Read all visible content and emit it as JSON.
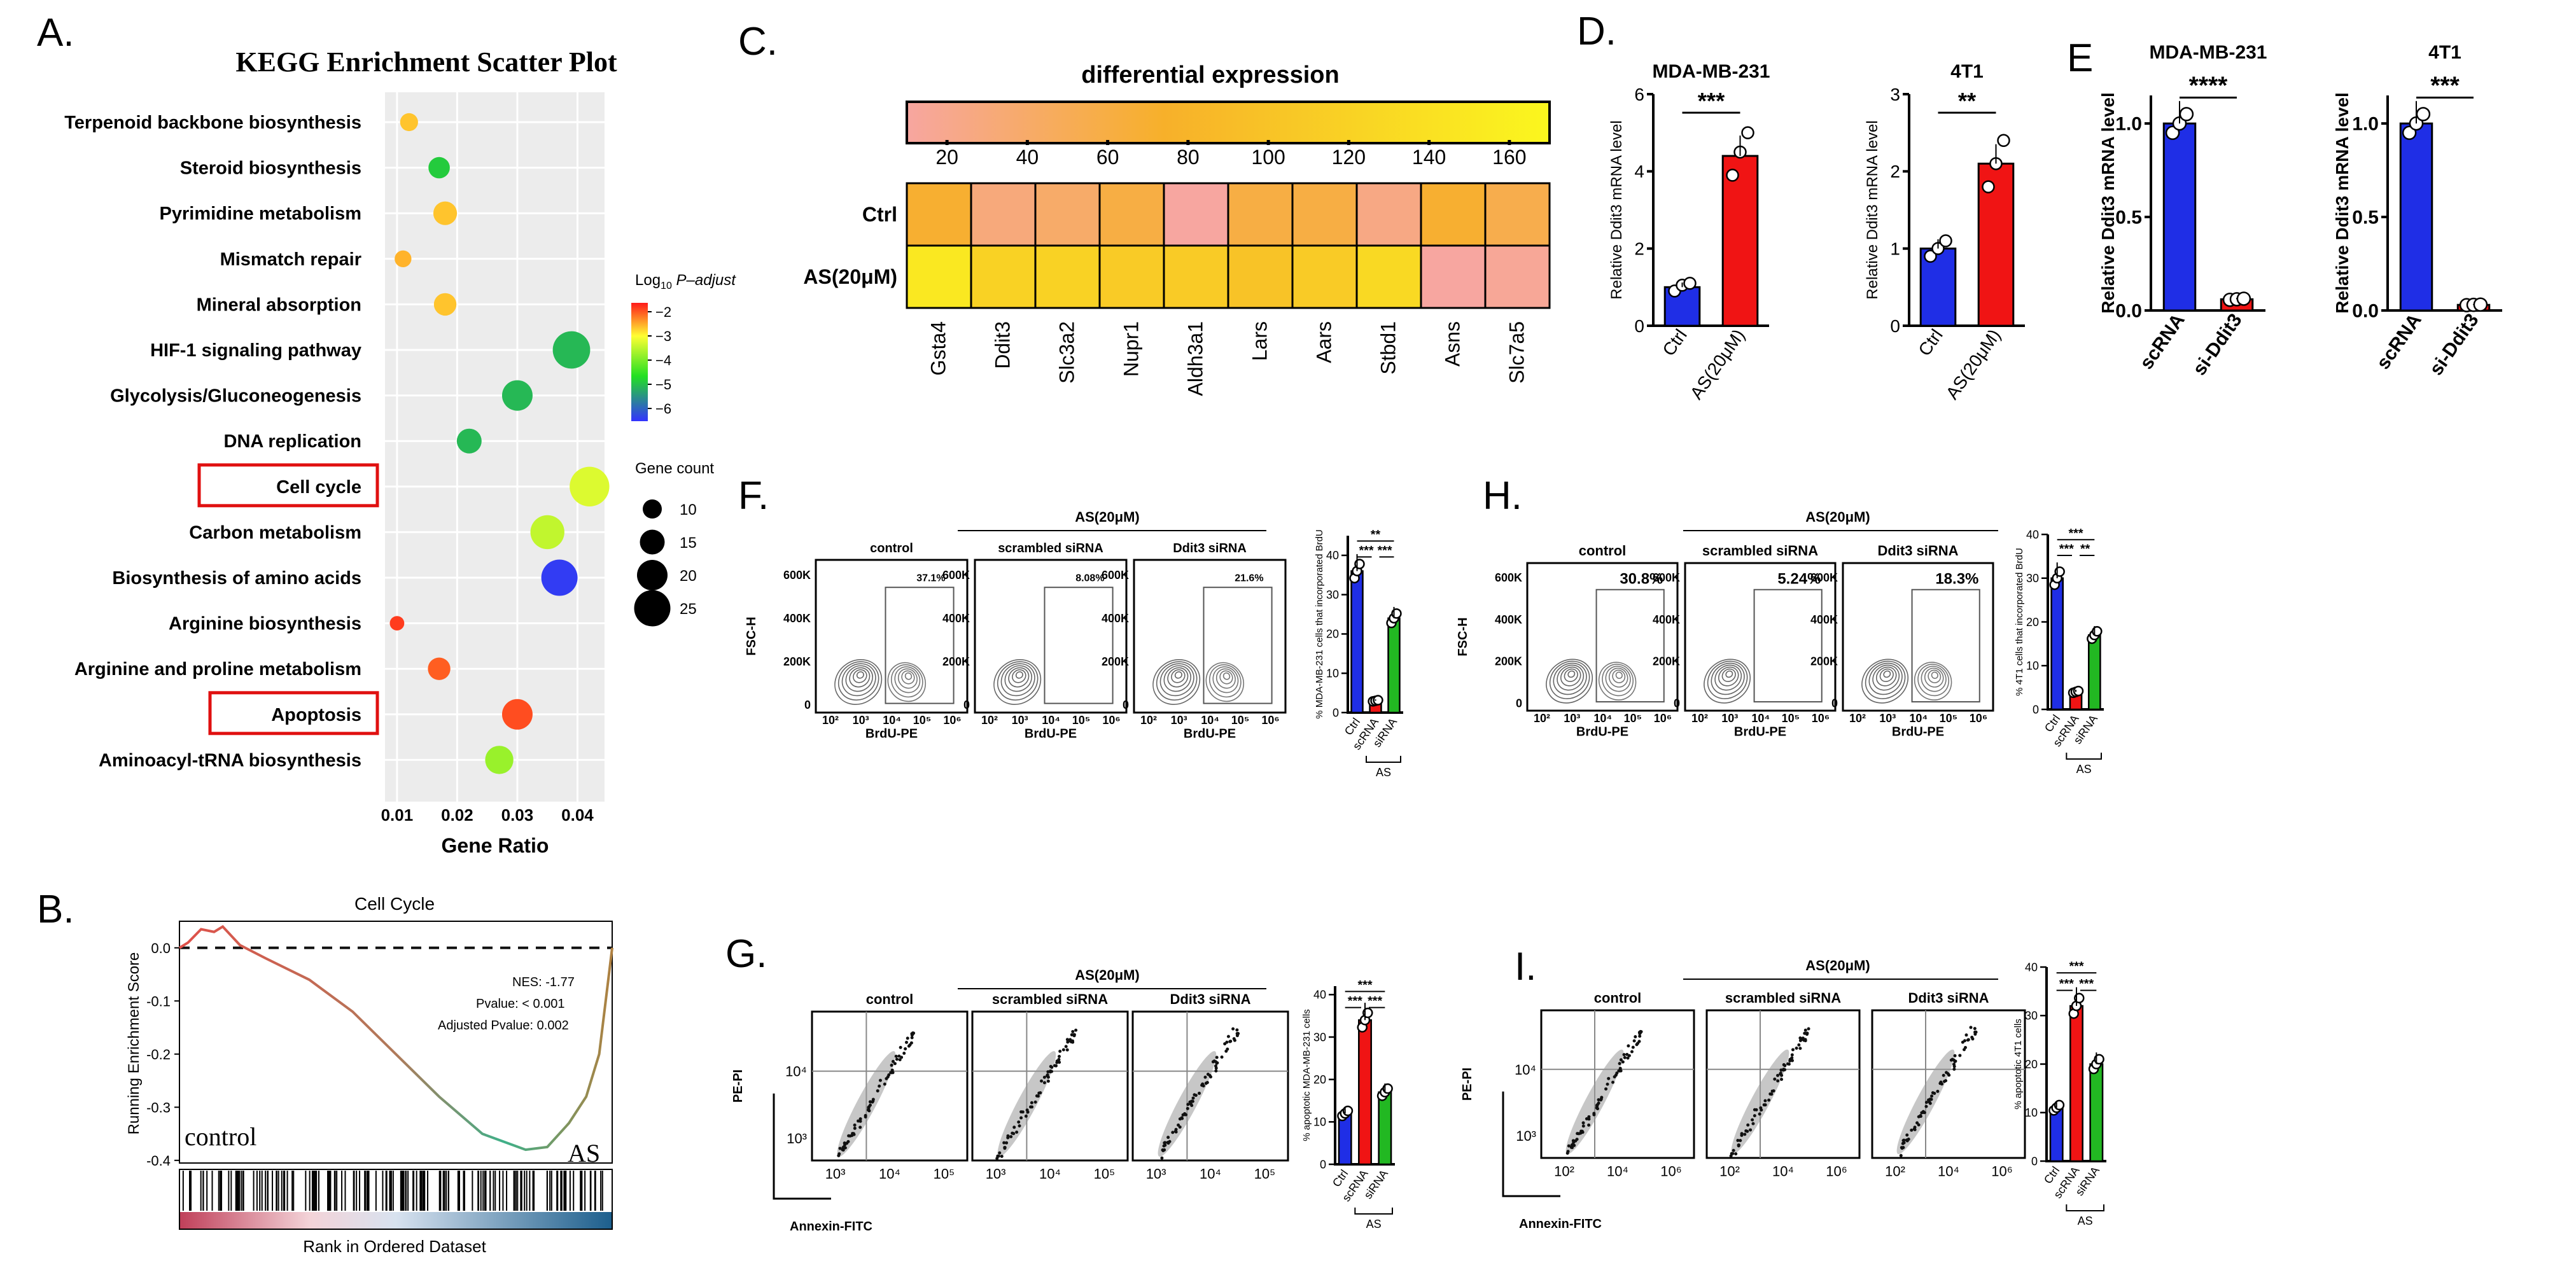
{
  "letters": {
    "A": "A.",
    "B": "B.",
    "C": "C.",
    "D": "D.",
    "E": "E",
    "F": "F.",
    "G": "G.",
    "H": "H.",
    "I": "I."
  },
  "panelA": {
    "title": "KEGG Enrichment Scatter Plot",
    "xlabel": "Gene Ratio",
    "xticks": [
      "0.01",
      "0.02",
      "0.03",
      "0.04"
    ],
    "pathways": [
      {
        "name": "Terpenoid backbone biosynthesis",
        "ratio": 0.012,
        "p": -2.6,
        "count": 9,
        "boxed": false
      },
      {
        "name": "Steroid biosynthesis",
        "ratio": 0.017,
        "p": -4.8,
        "count": 12,
        "boxed": false
      },
      {
        "name": "Pyrimidine metabolism",
        "ratio": 0.018,
        "p": -2.6,
        "count": 14,
        "boxed": false
      },
      {
        "name": "Mismatch repair",
        "ratio": 0.011,
        "p": -2.5,
        "count": 8,
        "boxed": false
      },
      {
        "name": "Mineral absorption",
        "ratio": 0.018,
        "p": -2.6,
        "count": 13,
        "boxed": false
      },
      {
        "name": "HIF-1 signaling pathway",
        "ratio": 0.039,
        "p": -5.0,
        "count": 26,
        "boxed": false
      },
      {
        "name": "Glycolysis/Gluconeogenesis",
        "ratio": 0.03,
        "p": -5.0,
        "count": 20,
        "boxed": false
      },
      {
        "name": "DNA replication",
        "ratio": 0.022,
        "p": -5.0,
        "count": 15,
        "boxed": false
      },
      {
        "name": "Cell cycle",
        "ratio": 0.042,
        "p": -3.2,
        "count": 28,
        "boxed": true
      },
      {
        "name": "Carbon metabolism",
        "ratio": 0.035,
        "p": -3.4,
        "count": 23,
        "boxed": false
      },
      {
        "name": "Biosynthesis of amino acids",
        "ratio": 0.037,
        "p": -6.3,
        "count": 25,
        "boxed": false
      },
      {
        "name": "Arginine biosynthesis",
        "ratio": 0.01,
        "p": -1.8,
        "count": 6,
        "boxed": false
      },
      {
        "name": "Arginine and proline metabolism",
        "ratio": 0.017,
        "p": -2.0,
        "count": 13,
        "boxed": false
      },
      {
        "name": "Apoptosis",
        "ratio": 0.03,
        "p": -1.9,
        "count": 20,
        "boxed": true
      },
      {
        "name": "Aminoacyl-tRNA biosynthesis",
        "ratio": 0.027,
        "p": -3.7,
        "count": 18,
        "boxed": false
      }
    ],
    "colorbar_title": "Log10 P-adjust",
    "colorbar_ticks": [
      "−2",
      "−3",
      "−4",
      "−5",
      "−6"
    ],
    "size_title": "Gene count",
    "size_ticks": [
      "10",
      "15",
      "20",
      "25"
    ]
  },
  "panelB": {
    "title": "Cell Cycle",
    "ylabel": "Running Enrichment Score",
    "xlabel": "Rank in Ordered Dataset",
    "yticks": [
      "0.0",
      "-0.1",
      "-0.2",
      "-0.3",
      "-0.4"
    ],
    "nes": "NES: -1.77",
    "pvalue": "Pvalue: < 0.001",
    "adj": "Adjusted Pvalue: 0.002",
    "left_label": "control",
    "right_label": "AS"
  },
  "panelC": {
    "title": "differential expression",
    "scale_ticks": [
      "20",
      "40",
      "60",
      "80",
      "100",
      "120",
      "140",
      "160"
    ],
    "rows": [
      "Ctrl",
      "AS(20μM)"
    ],
    "genes": [
      "Gsta4",
      "Ddit3",
      "Slc3a2",
      "Nupr1",
      "Aldh3a1",
      "Lars",
      "Aars",
      "Stbd1",
      "Asns",
      "Slc7a5"
    ],
    "values": [
      [
        70,
        30,
        40,
        60,
        10,
        60,
        60,
        25,
        70,
        55
      ],
      [
        150,
        120,
        120,
        110,
        110,
        100,
        110,
        130,
        10,
        15
      ]
    ]
  },
  "panelD": [
    {
      "title": "MDA-MB-231",
      "ylabel": "Relative Ddit3 mRNA level",
      "yticks": [
        "0",
        "2",
        "4",
        "6"
      ],
      "ymax": 6,
      "cats": [
        "Ctrl",
        "AS(20μM)"
      ],
      "values": [
        1,
        4.4
      ],
      "points": [
        [
          0.9,
          1.05,
          1.1
        ],
        [
          3.9,
          4.5,
          5.0
        ]
      ],
      "sig": "***"
    },
    {
      "title": "4T1",
      "ylabel": "Relative Ddit3 mRNA level",
      "yticks": [
        "0",
        "1",
        "2",
        "3"
      ],
      "ymax": 3,
      "cats": [
        "Ctrl",
        "AS(20μM)"
      ],
      "values": [
        1,
        2.1
      ],
      "points": [
        [
          0.9,
          1.0,
          1.1
        ],
        [
          1.8,
          2.1,
          2.4
        ]
      ],
      "sig": "**"
    }
  ],
  "panelE": [
    {
      "title": "MDA-MB-231",
      "ylabel": "Relative Ddit3 mRNA level",
      "yticks": [
        "0.0",
        "0.5",
        "1.0"
      ],
      "ymax": 1.15,
      "cats": [
        "scRNA",
        "si-Ddit3"
      ],
      "values": [
        1.0,
        0.06
      ],
      "sig": "****"
    },
    {
      "title": "4T1",
      "ylabel": "Relative Ddit3 mRNA level",
      "yticks": [
        "0.0",
        "0.5",
        "1.0"
      ],
      "ymax": 1.15,
      "cats": [
        "scRNA",
        "si-Ddit3"
      ],
      "values": [
        1.0,
        0.03
      ],
      "sig": "***"
    }
  ],
  "panelF": {
    "as_label": "AS(20μM)",
    "plots": [
      {
        "title": "control",
        "pct": "37.1%"
      },
      {
        "title": "scrambled siRNA",
        "pct": "8.08%"
      },
      {
        "title": "Ddit3 siRNA",
        "pct": "21.6%"
      }
    ],
    "yticks": [
      "600K",
      "400K",
      "200K",
      "0"
    ],
    "ylabel": "FSC-H",
    "xlabel": "BrdU-PE",
    "xticks": [
      "10",
      "2",
      "3",
      "4",
      "5",
      "6",
      "7"
    ],
    "bar": {
      "ylabel": "% MDA-MB-231 cells that incorporated BrdU",
      "yticks": [
        "0",
        "10",
        "20",
        "30",
        "40"
      ],
      "ymax": 45,
      "cats": [
        "Ctrl",
        "scRNA",
        "siRNA"
      ],
      "values": [
        36,
        3,
        24
      ],
      "sig": [
        "**",
        "***",
        "***"
      ],
      "group": "AS"
    }
  },
  "panelH": {
    "as_label": "AS(20μM)",
    "plots": [
      {
        "title": "control",
        "pct": "30.8%"
      },
      {
        "title": "scrambled siRNA",
        "pct": "5.24%"
      },
      {
        "title": "Ddit3 siRNA",
        "pct": "18.3%"
      }
    ],
    "yticks": [
      "600K",
      "400K",
      "200K",
      "0"
    ],
    "ylabel": "FSC-H",
    "xlabel": "BrdU-PE",
    "bar": {
      "ylabel": "% 4T1 cells that incorporated BrdU",
      "yticks": [
        "0",
        "10",
        "20",
        "30",
        "40"
      ],
      "ymax": 40,
      "cats": [
        "Ctrl",
        "scRNA",
        "siRNA"
      ],
      "values": [
        30,
        4,
        17
      ],
      "sig": [
        "***",
        "***",
        "**"
      ],
      "group": "AS"
    }
  },
  "panelG": {
    "as_label": "AS(20μM)",
    "plots": [
      {
        "title": "control"
      },
      {
        "title": "scrambled siRNA"
      },
      {
        "title": "Ddit3 siRNA"
      }
    ],
    "ylabel": "PE-PI",
    "xlabel": "Annexin-FITC",
    "yticks": [
      "10⁴",
      "10³"
    ],
    "xticks": [
      "10³",
      "10⁴",
      "10⁵"
    ],
    "bar": {
      "ylabel": "% apoptotic MDA-MB-231 cells",
      "yticks": [
        "0",
        "10",
        "20",
        "30",
        "40"
      ],
      "ymax": 42,
      "cats": [
        "Ctrl",
        "scRNA",
        "siRNA"
      ],
      "values": [
        12,
        34,
        17
      ],
      "sig": [
        "***",
        "***",
        "***"
      ],
      "group": "AS"
    }
  },
  "panelI": {
    "as_label": "AS(20μM)",
    "plots": [
      {
        "title": "control"
      },
      {
        "title": "scrambled siRNA"
      },
      {
        "title": "Ddit3 siRNA"
      }
    ],
    "ylabel": "PE-PI",
    "xlabel": "Annexin-FITC",
    "yticks": [
      "10⁴",
      "10³"
    ],
    "xticks": [
      "10²",
      "10⁴",
      "10⁶"
    ],
    "bar": {
      "ylabel": "% apoptotic 4T1 cells",
      "yticks": [
        "0",
        "10",
        "20",
        "30",
        "40"
      ],
      "ymax": 40,
      "cats": [
        "Ctrl",
        "scRNA",
        "siRNA"
      ],
      "values": [
        11,
        32,
        20
      ],
      "sig": [
        "***",
        "***",
        "***"
      ],
      "group": "AS"
    }
  },
  "colors": {
    "blue": "#1f2ee6",
    "red": "#f01414",
    "green": "#22b822"
  }
}
